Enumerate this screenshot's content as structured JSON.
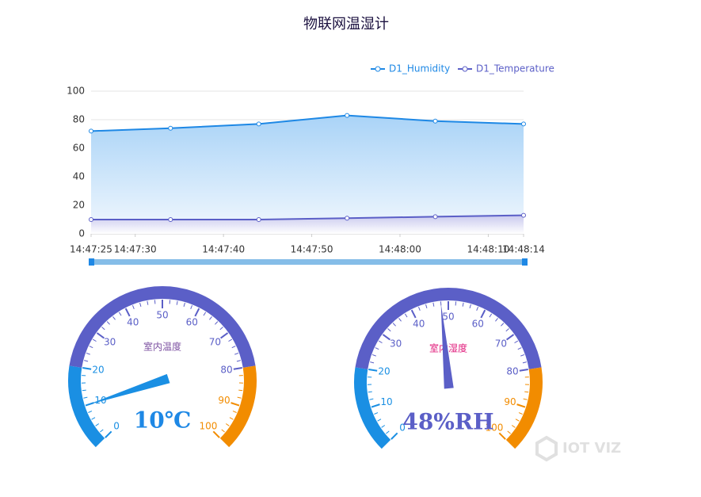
{
  "chart_data": [
    {
      "type": "line",
      "title": "物联网温湿计",
      "x": [
        "14:47:25",
        "14:47:34",
        "14:47:44",
        "14:47:54",
        "14:48:04",
        "14:48:14"
      ],
      "series": [
        {
          "name": "D1_Humidity",
          "color": "#1e88e5",
          "values": [
            72,
            74,
            77,
            83,
            79,
            77
          ]
        },
        {
          "name": "D1_Temperature",
          "color": "#5b5fc7",
          "values": [
            10,
            10,
            10,
            11,
            12,
            13
          ]
        }
      ],
      "xlim": [
        "14:47:25",
        "14:48:14"
      ],
      "xticks": [
        "14:47:25",
        "14:47:30",
        "14:47:40",
        "14:47:50",
        "14:48:00",
        "14:48:10",
        "14:48:14"
      ],
      "ylim": [
        0,
        100
      ],
      "yticks": [
        0,
        20,
        40,
        60,
        80,
        100
      ],
      "grid": true,
      "legend": "top-right"
    },
    {
      "type": "gauge",
      "title": "室内温度",
      "value": 10,
      "value_label": "10℃",
      "value_color": "#1e88e5",
      "title_color": "#7b4fa0",
      "range": [
        0,
        100
      ],
      "ticks": [
        0,
        10,
        20,
        30,
        40,
        50,
        60,
        70,
        80,
        90,
        100
      ],
      "bands": [
        {
          "to": 20,
          "color": "#1a8fe3"
        },
        {
          "to": 80,
          "color": "#5b5fc7"
        },
        {
          "to": 100,
          "color": "#f28c00"
        }
      ]
    },
    {
      "type": "gauge",
      "title": "室内湿度",
      "value": 48,
      "value_label": "48%RH",
      "value_color": "#5b5fc7",
      "title_color": "#e0197a",
      "range": [
        0,
        100
      ],
      "ticks": [
        0,
        10,
        20,
        30,
        40,
        50,
        60,
        70,
        80,
        90,
        100
      ],
      "bands": [
        {
          "to": 20,
          "color": "#1a8fe3"
        },
        {
          "to": 80,
          "color": "#5b5fc7"
        },
        {
          "to": 100,
          "color": "#f28c00"
        }
      ]
    }
  ],
  "watermark": "IOT VIZ"
}
